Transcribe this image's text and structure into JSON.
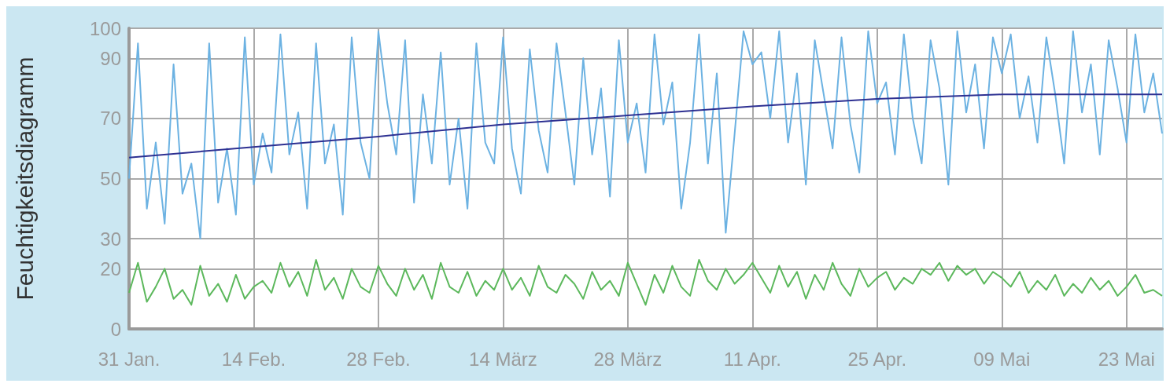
{
  "chart_data": {
    "type": "line",
    "ylabel": "Feuchtigkeitsdiagramm",
    "x": [
      "--01-31",
      "--02-01",
      "--02-02",
      "--02-03",
      "--02-04",
      "--02-05",
      "--02-06",
      "--02-07",
      "--02-08",
      "--02-09",
      "--02-10",
      "--02-11",
      "--02-12",
      "--02-13",
      "--02-14",
      "--02-15",
      "--02-16",
      "--02-17",
      "--02-18",
      "--02-19",
      "--02-20",
      "--02-21",
      "--02-22",
      "--02-23",
      "--02-24",
      "--02-25",
      "--02-26",
      "--02-27",
      "--02-28",
      "--03-01",
      "--03-02",
      "--03-03",
      "--03-04",
      "--03-05",
      "--03-06",
      "--03-07",
      "--03-08",
      "--03-09",
      "--03-10",
      "--03-11",
      "--03-12",
      "--03-13",
      "--03-14",
      "--03-15",
      "--03-16",
      "--03-17",
      "--03-18",
      "--03-19",
      "--03-20",
      "--03-21",
      "--03-22",
      "--03-23",
      "--03-24",
      "--03-25",
      "--03-26",
      "--03-27",
      "--03-28",
      "--03-29",
      "--03-30",
      "--03-31",
      "--04-01",
      "--04-02",
      "--04-03",
      "--04-04",
      "--04-05",
      "--04-06",
      "--04-07",
      "--04-08",
      "--04-09",
      "--04-10",
      "--04-11",
      "--04-12",
      "--04-13",
      "--04-14",
      "--04-15",
      "--04-16",
      "--04-17",
      "--04-18",
      "--04-19",
      "--04-20",
      "--04-21",
      "--04-22",
      "--04-23",
      "--04-24",
      "--04-25",
      "--04-26",
      "--04-27",
      "--04-28",
      "--04-29",
      "--04-30",
      "--05-01",
      "--05-02",
      "--05-03",
      "--05-04",
      "--05-05",
      "--05-06",
      "--05-07",
      "--05-08",
      "--05-09",
      "--05-10",
      "--05-11",
      "--05-12",
      "--05-13",
      "--05-14",
      "--05-15",
      "--05-16",
      "--05-17",
      "--05-18",
      "--05-19",
      "--05-20",
      "--05-21",
      "--05-22",
      "--05-23",
      "--05-24",
      "--05-25",
      "--05-26",
      "--05-27"
    ],
    "series": [
      {
        "color": "#6cb2e2",
        "values": [
          50,
          95,
          40,
          62,
          35,
          88,
          45,
          55,
          30,
          95,
          42,
          60,
          38,
          97,
          48,
          65,
          52,
          98,
          58,
          72,
          40,
          95,
          55,
          68,
          38,
          97,
          62,
          50,
          99,
          75,
          58,
          96,
          42,
          78,
          55,
          92,
          48,
          70,
          40,
          95,
          62,
          55,
          97,
          60,
          45,
          93,
          66,
          52,
          95,
          72,
          48,
          90,
          58,
          80,
          44,
          96,
          62,
          75,
          52,
          98,
          68,
          82,
          40,
          62,
          98,
          55,
          85,
          32,
          65,
          99,
          88,
          92,
          70,
          99,
          62,
          85,
          48,
          96,
          78,
          60,
          97,
          68,
          52,
          99,
          75,
          82,
          58,
          98,
          70,
          55,
          96,
          80,
          48,
          99,
          72,
          88,
          60,
          97,
          85,
          98,
          70,
          84,
          62,
          97,
          78,
          55,
          99,
          72,
          88,
          58,
          96,
          80,
          62,
          98,
          72,
          85,
          65
        ]
      },
      {
        "color": "#5cb85c",
        "values": [
          12,
          22,
          9,
          14,
          20,
          10,
          13,
          8,
          21,
          11,
          15,
          9,
          18,
          10,
          14,
          16,
          12,
          22,
          14,
          19,
          11,
          23,
          13,
          17,
          10,
          20,
          14,
          12,
          21,
          15,
          11,
          20,
          13,
          18,
          10,
          22,
          14,
          12,
          19,
          11,
          16,
          13,
          20,
          13,
          17,
          11,
          21,
          14,
          12,
          18,
          15,
          10,
          19,
          13,
          16,
          11,
          22,
          15,
          8,
          18,
          12,
          21,
          14,
          11,
          23,
          16,
          13,
          20,
          15,
          18,
          22,
          17,
          12,
          21,
          14,
          19,
          10,
          18,
          13,
          22,
          15,
          11,
          20,
          14,
          17,
          19,
          13,
          17,
          15,
          20,
          18,
          22,
          16,
          21,
          18,
          20,
          15,
          19,
          17,
          14,
          19,
          12,
          16,
          13,
          18,
          11,
          15,
          12,
          17,
          13,
          16,
          11,
          14,
          18,
          12,
          13,
          11
        ]
      },
      {
        "color": "#2e3192",
        "x": [
          "--01-31",
          "--02-14",
          "--02-28",
          "--03-14",
          "--03-28",
          "--04-11",
          "--04-25",
          "--05-09",
          "--05-27"
        ],
        "values": [
          57,
          60.5,
          64,
          68,
          71,
          74,
          76.5,
          78,
          78
        ]
      }
    ],
    "xlim": [
      "--01-31",
      "--05-27"
    ],
    "xticks": [
      {
        "value": "--01-31",
        "label": "31 Jan."
      },
      {
        "value": "--02-14",
        "label": "14 Feb."
      },
      {
        "value": "--02-28",
        "label": "28 Feb."
      },
      {
        "value": "--03-14",
        "label": "14 März"
      },
      {
        "value": "--03-28",
        "label": "28 März"
      },
      {
        "value": "--04-11",
        "label": "11 Apr."
      },
      {
        "value": "--04-25",
        "label": "25 Apr."
      },
      {
        "value": "--05-09",
        "label": "09 Mai"
      },
      {
        "value": "--05-23",
        "label": "23 Mai"
      }
    ],
    "ylim": [
      0,
      100
    ],
    "yticks": [
      0,
      20,
      30,
      50,
      70,
      90,
      100
    ],
    "grid": true
  }
}
